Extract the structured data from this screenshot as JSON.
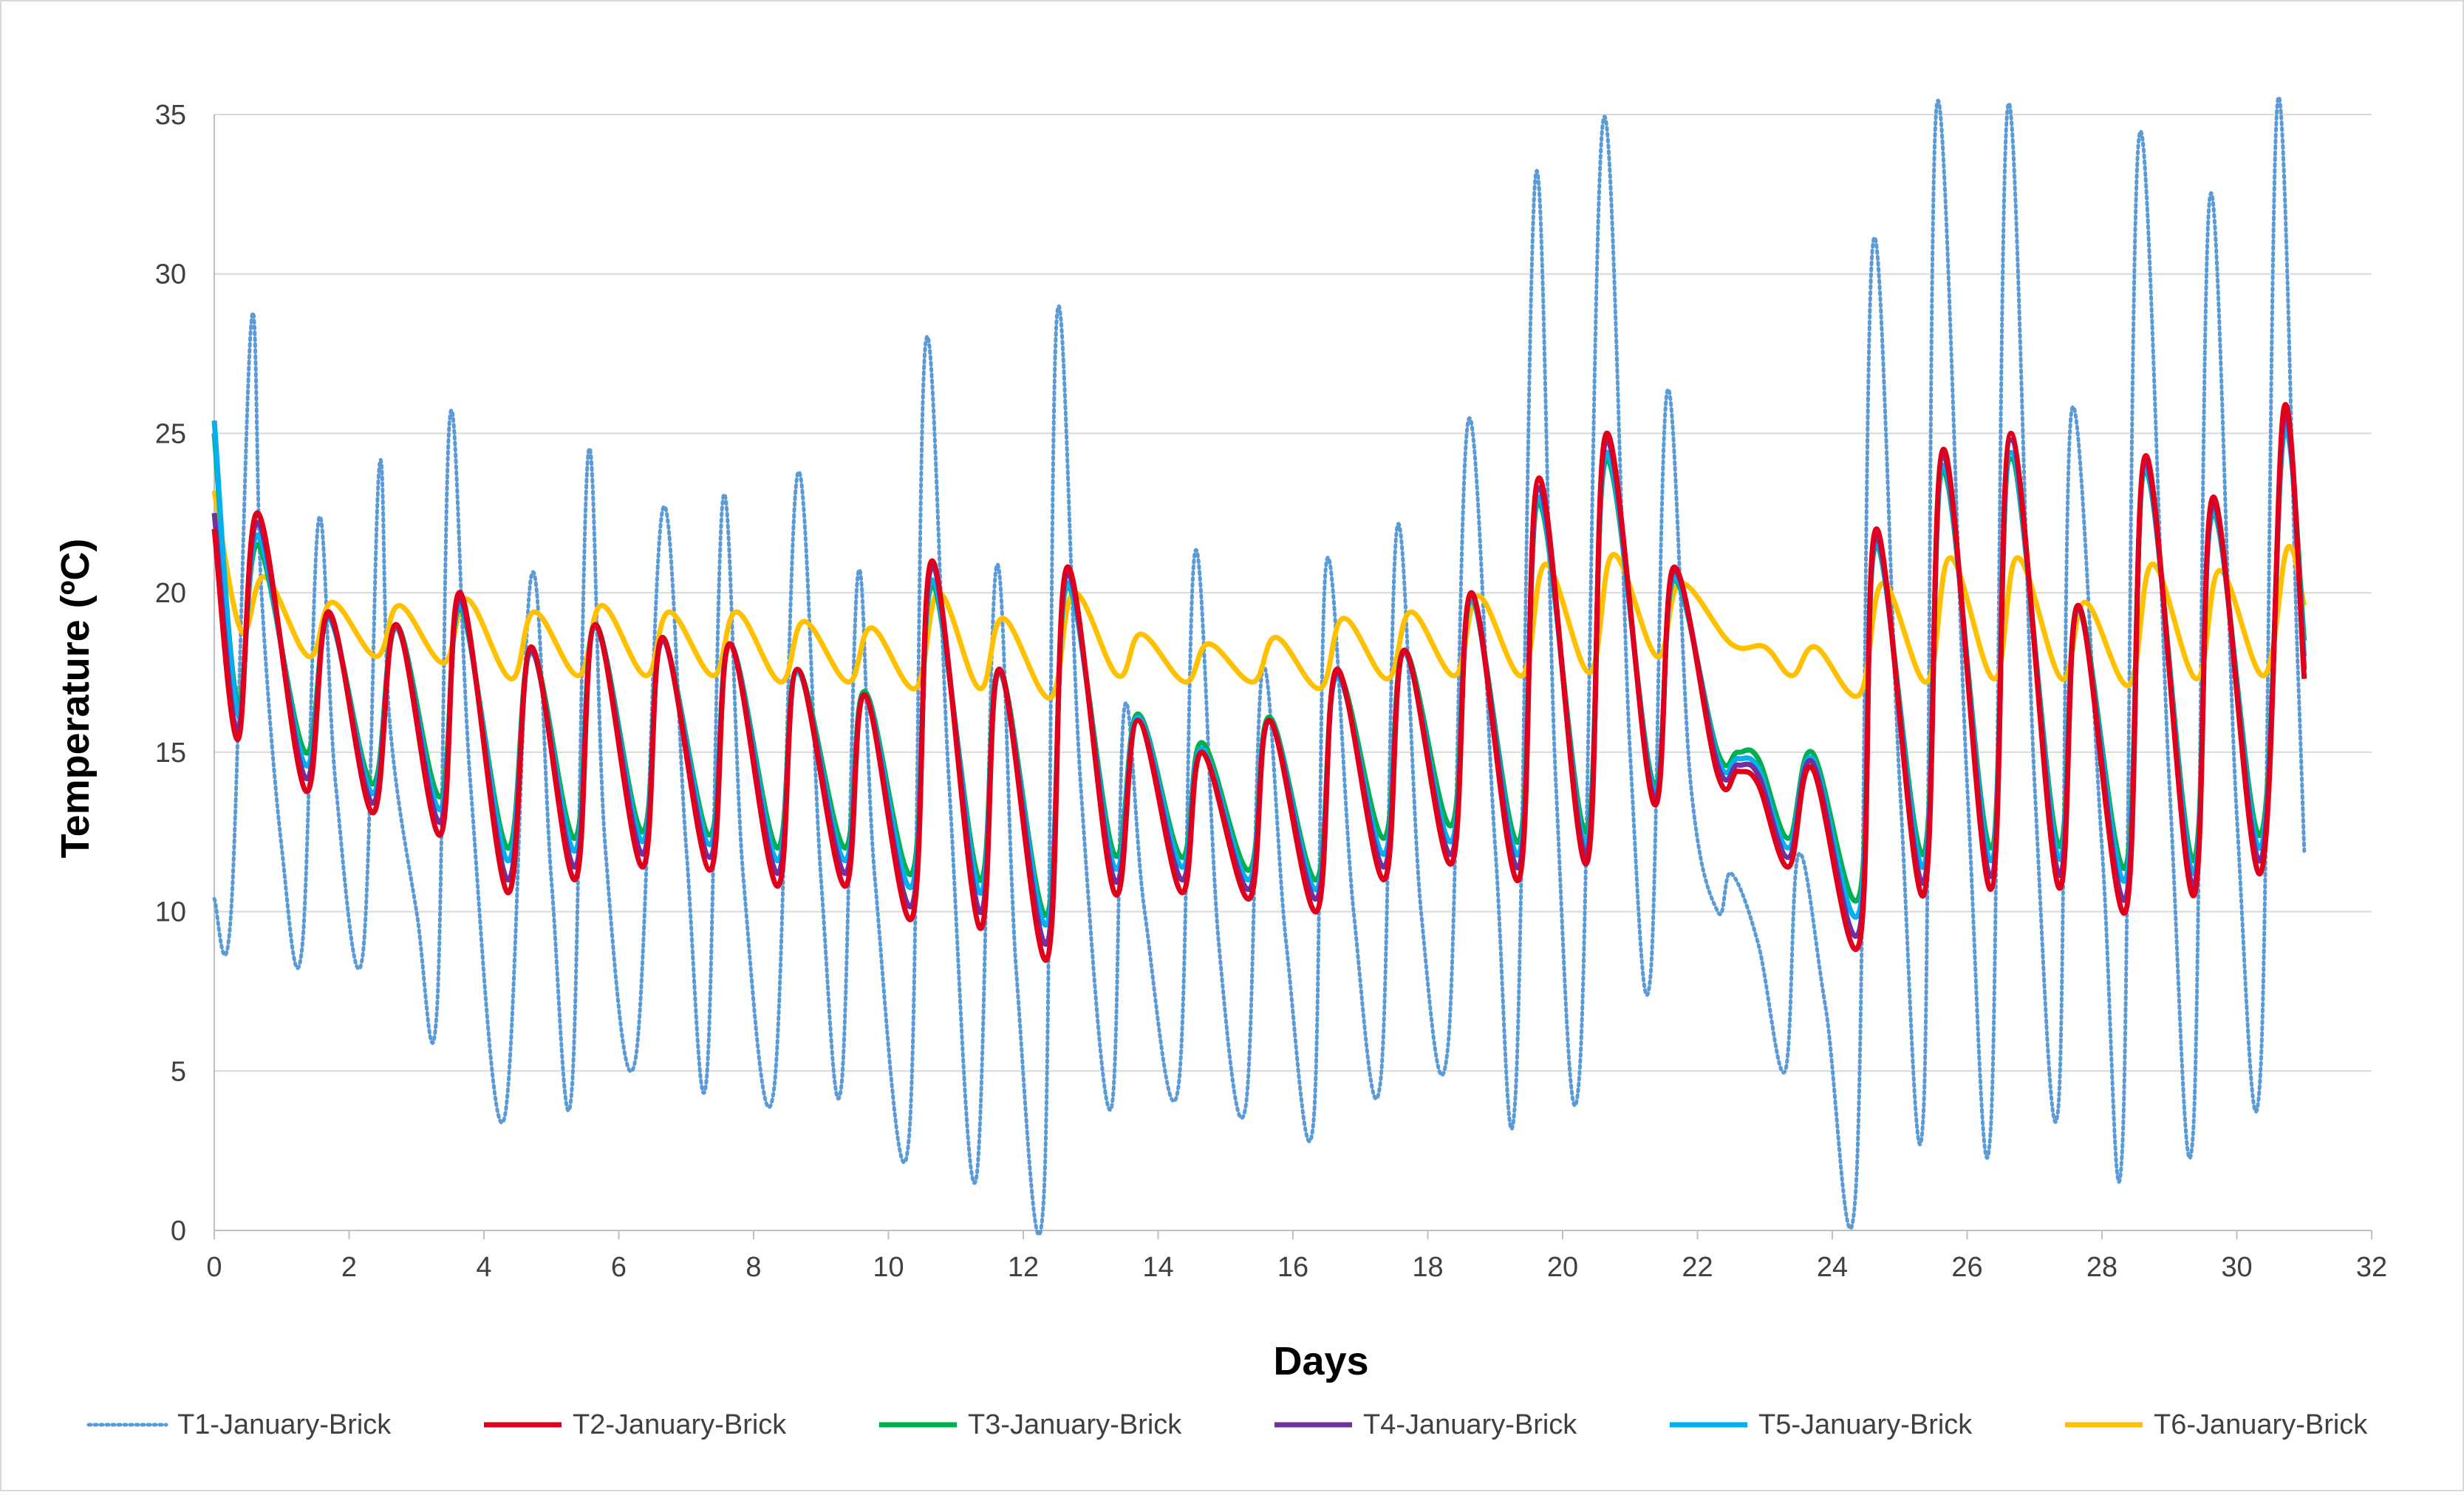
{
  "chart_data": {
    "type": "line",
    "title": "",
    "xlabel": "Days",
    "ylabel": "Temperature (ºC)",
    "xlim": [
      0,
      32
    ],
    "ylim": [
      0,
      35
    ],
    "xticks": [
      0,
      2,
      4,
      6,
      8,
      10,
      12,
      14,
      16,
      18,
      20,
      22,
      24,
      26,
      28,
      30,
      32
    ],
    "yticks": [
      0,
      5,
      10,
      15,
      20,
      25,
      30,
      35
    ],
    "grid": "horizontal",
    "legend_position": "bottom",
    "series": [
      {
        "name": "T1-January-Brick",
        "color": "#5b9bd5",
        "style": "dotted",
        "x": [
          0,
          0.25,
          0.55,
          0.7,
          1.0,
          1.3,
          1.55,
          1.8,
          2.2,
          2.45,
          2.6,
          3.0,
          3.3,
          3.5,
          3.8,
          4.3,
          4.7,
          5.0,
          5.3,
          5.55,
          5.8,
          6.25,
          6.65,
          7.0,
          7.3,
          7.55,
          7.85,
          8.3,
          8.65,
          9.0,
          9.3,
          9.55,
          9.8,
          10.3,
          10.55,
          10.9,
          11.3,
          11.6,
          11.9,
          12.3,
          12.5,
          12.85,
          13.3,
          13.5,
          13.8,
          14.3,
          14.55,
          14.9,
          15.3,
          15.55,
          15.9,
          16.3,
          16.5,
          16.9,
          17.3,
          17.55,
          17.9,
          18.3,
          18.6,
          19.0,
          19.3,
          19.6,
          19.9,
          20.25,
          20.6,
          21.0,
          21.3,
          21.55,
          21.9,
          22.3,
          22.5,
          22.9,
          23.3,
          23.5,
          23.9,
          24.35,
          24.6,
          25.0,
          25.35,
          25.55,
          26.0,
          26.35,
          26.6,
          27.0,
          27.35,
          27.55,
          28.0,
          28.3,
          28.55,
          29.0,
          29.35,
          29.6,
          30.0,
          30.35,
          30.6,
          30.9,
          31.0
        ],
        "values": [
          10.4,
          10.0,
          28.5,
          20.0,
          12.0,
          8.8,
          22.3,
          14.0,
          8.6,
          24.0,
          16.0,
          10.0,
          6.8,
          25.6,
          14.0,
          3.5,
          20.5,
          11.0,
          4.3,
          24.4,
          12.0,
          5.4,
          22.6,
          12.0,
          4.7,
          23.0,
          11.0,
          4.4,
          23.7,
          11.0,
          4.5,
          20.6,
          11.0,
          2.8,
          27.8,
          14.0,
          1.6,
          20.8,
          8.0,
          0.9,
          28.7,
          14.0,
          3.8,
          16.4,
          10.0,
          4.5,
          21.3,
          9.0,
          3.9,
          17.6,
          9.0,
          3.3,
          21.0,
          10.0,
          4.7,
          22.1,
          10.0,
          5.8,
          25.4,
          12.0,
          4.2,
          33.1,
          14.0,
          4.9,
          34.8,
          15.0,
          7.9,
          26.3,
          14.0,
          10.0,
          11.2,
          9.0,
          5.0,
          11.8,
          7.0,
          1.3,
          30.9,
          14.0,
          3.6,
          35.3,
          14.0,
          3.2,
          35.2,
          14.0,
          3.8,
          25.7,
          12.0,
          2.5,
          34.3,
          14.0,
          3.0,
          32.4,
          13.0,
          4.9,
          35.3,
          18.0,
          11.9
        ]
      },
      {
        "name": "T2-January-Brick",
        "color": "#e0001b",
        "style": "solid",
        "x": [
          0,
          0.35,
          0.65,
          1.35,
          1.7,
          2.35,
          2.7,
          3.35,
          3.65,
          4.35,
          4.7,
          5.35,
          5.65,
          6.35,
          6.65,
          7.35,
          7.65,
          8.35,
          8.65,
          9.35,
          9.65,
          10.35,
          10.65,
          11.35,
          11.65,
          12.35,
          12.65,
          13.35,
          13.7,
          14.35,
          14.65,
          15.35,
          15.65,
          16.35,
          16.65,
          17.35,
          17.65,
          18.35,
          18.65,
          19.35,
          19.65,
          20.35,
          20.65,
          21.35,
          21.65,
          22.3,
          22.6,
          22.9,
          23.35,
          23.7,
          24.4,
          24.65,
          25.35,
          25.65,
          26.35,
          26.65,
          27.35,
          27.65,
          28.35,
          28.65,
          29.35,
          29.65,
          30.35,
          30.7,
          31.0
        ],
        "values": [
          22.0,
          15.4,
          22.5,
          13.8,
          19.4,
          13.1,
          19.0,
          12.4,
          20.0,
          10.6,
          18.3,
          11.0,
          19.0,
          11.4,
          18.6,
          11.3,
          18.4,
          10.8,
          17.6,
          10.8,
          16.8,
          9.8,
          21.0,
          9.5,
          17.6,
          8.5,
          20.8,
          10.6,
          16.0,
          10.6,
          15.0,
          10.4,
          16.0,
          10.0,
          17.6,
          11.0,
          18.2,
          11.5,
          20.0,
          11.0,
          23.6,
          11.5,
          25.0,
          13.4,
          20.8,
          14.3,
          14.4,
          14.0,
          11.4,
          14.5,
          9.0,
          22.0,
          10.5,
          24.5,
          10.7,
          25.0,
          10.8,
          19.6,
          10.0,
          24.3,
          10.5,
          23.0,
          11.2,
          25.8,
          17.3
        ]
      },
      {
        "name": "T3-January-Brick",
        "color": "#00b050",
        "style": "solid",
        "x": [
          0,
          0.35,
          0.65,
          1.35,
          1.7,
          2.35,
          2.7,
          3.35,
          3.65,
          4.35,
          4.7,
          5.35,
          5.65,
          6.35,
          6.65,
          7.35,
          7.65,
          8.35,
          8.65,
          9.35,
          9.65,
          10.35,
          10.65,
          11.35,
          11.65,
          12.35,
          12.65,
          13.35,
          13.7,
          14.35,
          14.65,
          15.35,
          15.65,
          16.35,
          16.65,
          17.35,
          17.65,
          18.35,
          18.65,
          19.35,
          19.65,
          20.35,
          20.65,
          21.35,
          21.65,
          22.3,
          22.6,
          22.9,
          23.35,
          23.7,
          24.4,
          24.65,
          25.35,
          25.65,
          26.35,
          26.65,
          27.35,
          27.65,
          28.35,
          28.65,
          29.35,
          29.65,
          30.35,
          30.7,
          31.0
        ],
        "values": [
          25.0,
          16.5,
          21.5,
          15.0,
          19.2,
          14.0,
          19.0,
          13.6,
          19.5,
          12.0,
          18.2,
          12.3,
          19.0,
          12.5,
          18.5,
          12.4,
          18.4,
          12.0,
          17.6,
          12.0,
          16.9,
          11.2,
          20.2,
          11.0,
          17.6,
          9.9,
          20.2,
          11.8,
          16.2,
          11.7,
          15.3,
          11.3,
          16.1,
          11.0,
          17.5,
          12.3,
          18.2,
          12.7,
          19.8,
          12.2,
          22.8,
          12.5,
          24.2,
          14.0,
          20.4,
          15.0,
          15.0,
          14.8,
          12.3,
          15.0,
          10.5,
          21.5,
          11.8,
          23.8,
          12.0,
          24.2,
          12.1,
          19.6,
          11.4,
          23.8,
          11.6,
          22.5,
          12.4,
          25.0,
          18.5
        ]
      },
      {
        "name": "T4-January-Brick",
        "color": "#7030a0",
        "style": "solid",
        "x": [
          0,
          0.35,
          0.65,
          1.35,
          1.7,
          2.35,
          2.7,
          3.35,
          3.65,
          4.35,
          4.7,
          5.35,
          5.65,
          6.35,
          6.65,
          7.35,
          7.65,
          8.35,
          8.65,
          9.35,
          9.65,
          10.35,
          10.65,
          11.35,
          11.65,
          12.35,
          12.65,
          13.35,
          13.7,
          14.35,
          14.65,
          15.35,
          15.65,
          16.35,
          16.65,
          17.35,
          17.65,
          18.35,
          18.65,
          19.35,
          19.65,
          20.35,
          20.65,
          21.35,
          21.65,
          22.3,
          22.6,
          22.9,
          23.35,
          23.7,
          24.4,
          24.65,
          25.35,
          25.65,
          26.35,
          26.65,
          27.35,
          27.65,
          28.35,
          28.65,
          29.35,
          29.65,
          30.35,
          30.7,
          31.0
        ],
        "values": [
          22.5,
          15.7,
          22.2,
          14.2,
          19.3,
          13.4,
          19.0,
          12.8,
          19.8,
          11.0,
          18.2,
          11.4,
          19.0,
          11.8,
          18.5,
          11.7,
          18.4,
          11.2,
          17.6,
          11.2,
          16.8,
          10.2,
          20.8,
          10.0,
          17.6,
          9.0,
          20.6,
          11.0,
          16.0,
          11.0,
          15.0,
          10.7,
          16.0,
          10.4,
          17.5,
          11.4,
          18.2,
          11.8,
          20.0,
          11.4,
          23.3,
          11.8,
          24.8,
          13.6,
          20.7,
          14.6,
          14.6,
          14.3,
          11.7,
          14.7,
          9.4,
          21.8,
          10.9,
          24.3,
          11.1,
          24.8,
          11.2,
          19.6,
          10.4,
          24.1,
          10.8,
          22.8,
          11.6,
          25.5,
          17.6
        ]
      },
      {
        "name": "T5-January-Brick",
        "color": "#00b0f0",
        "style": "solid",
        "x": [
          0,
          0.35,
          0.65,
          1.35,
          1.7,
          2.35,
          2.7,
          3.35,
          3.65,
          4.35,
          4.7,
          5.35,
          5.65,
          6.35,
          6.65,
          7.35,
          7.65,
          8.35,
          8.65,
          9.35,
          9.65,
          10.35,
          10.65,
          11.35,
          11.65,
          12.35,
          12.65,
          13.35,
          13.7,
          14.35,
          14.65,
          15.35,
          15.65,
          16.35,
          16.65,
          17.35,
          17.65,
          18.35,
          18.65,
          19.35,
          19.65,
          20.35,
          20.65,
          21.35,
          21.65,
          22.3,
          22.6,
          22.9,
          23.35,
          23.7,
          24.4,
          24.65,
          25.35,
          25.65,
          26.35,
          26.65,
          27.35,
          27.65,
          28.35,
          28.65,
          29.35,
          29.65,
          30.35,
          30.7,
          31.0
        ],
        "values": [
          25.4,
          16.2,
          21.8,
          14.6,
          19.2,
          13.7,
          18.9,
          13.2,
          19.6,
          11.6,
          18.1,
          11.9,
          18.9,
          12.2,
          18.5,
          12.1,
          18.4,
          11.6,
          17.5,
          11.6,
          16.8,
          10.8,
          20.4,
          10.6,
          17.5,
          9.6,
          20.3,
          11.4,
          16.1,
          11.4,
          15.1,
          11.0,
          16.0,
          10.7,
          17.4,
          11.8,
          18.1,
          12.2,
          19.8,
          11.8,
          23.0,
          12.1,
          24.4,
          13.8,
          20.5,
          14.8,
          14.8,
          14.5,
          12.0,
          14.8,
          10.0,
          21.6,
          11.4,
          24.0,
          11.6,
          24.4,
          11.7,
          19.5,
          11.0,
          23.9,
          11.2,
          22.6,
          12.0,
          25.1,
          18.0
        ]
      },
      {
        "name": "T6-January-Brick",
        "color": "#ffc000",
        "style": "solid",
        "x": [
          0,
          0.4,
          0.75,
          1.4,
          1.75,
          2.4,
          2.75,
          3.4,
          3.75,
          4.4,
          4.75,
          5.4,
          5.75,
          6.4,
          6.75,
          7.4,
          7.75,
          8.4,
          8.75,
          9.4,
          9.75,
          10.4,
          10.75,
          11.35,
          11.7,
          12.4,
          12.75,
          13.4,
          13.75,
          14.4,
          14.75,
          15.4,
          15.75,
          16.4,
          16.75,
          17.4,
          17.75,
          18.4,
          18.75,
          19.4,
          19.75,
          20.4,
          20.75,
          21.4,
          21.75,
          22.5,
          23.0,
          23.4,
          23.75,
          24.4,
          24.75,
          25.4,
          25.75,
          26.4,
          26.75,
          27.4,
          27.75,
          28.4,
          28.75,
          29.4,
          29.75,
          30.4,
          30.75,
          31.0
        ],
        "values": [
          23.2,
          18.8,
          20.5,
          18.0,
          19.7,
          18.0,
          19.6,
          17.8,
          19.8,
          17.3,
          19.4,
          17.4,
          19.6,
          17.4,
          19.4,
          17.4,
          19.4,
          17.2,
          19.1,
          17.2,
          18.9,
          17.0,
          20.0,
          17.0,
          19.2,
          16.7,
          20.0,
          17.4,
          18.7,
          17.2,
          18.4,
          17.2,
          18.6,
          17.0,
          19.2,
          17.3,
          19.4,
          17.4,
          19.9,
          17.4,
          20.9,
          17.5,
          21.2,
          18.0,
          20.3,
          18.4,
          18.3,
          17.4,
          18.3,
          16.8,
          20.3,
          17.2,
          21.1,
          17.3,
          21.1,
          17.3,
          19.7,
          17.1,
          20.9,
          17.3,
          20.7,
          17.4,
          21.4,
          19.6
        ]
      }
    ]
  }
}
